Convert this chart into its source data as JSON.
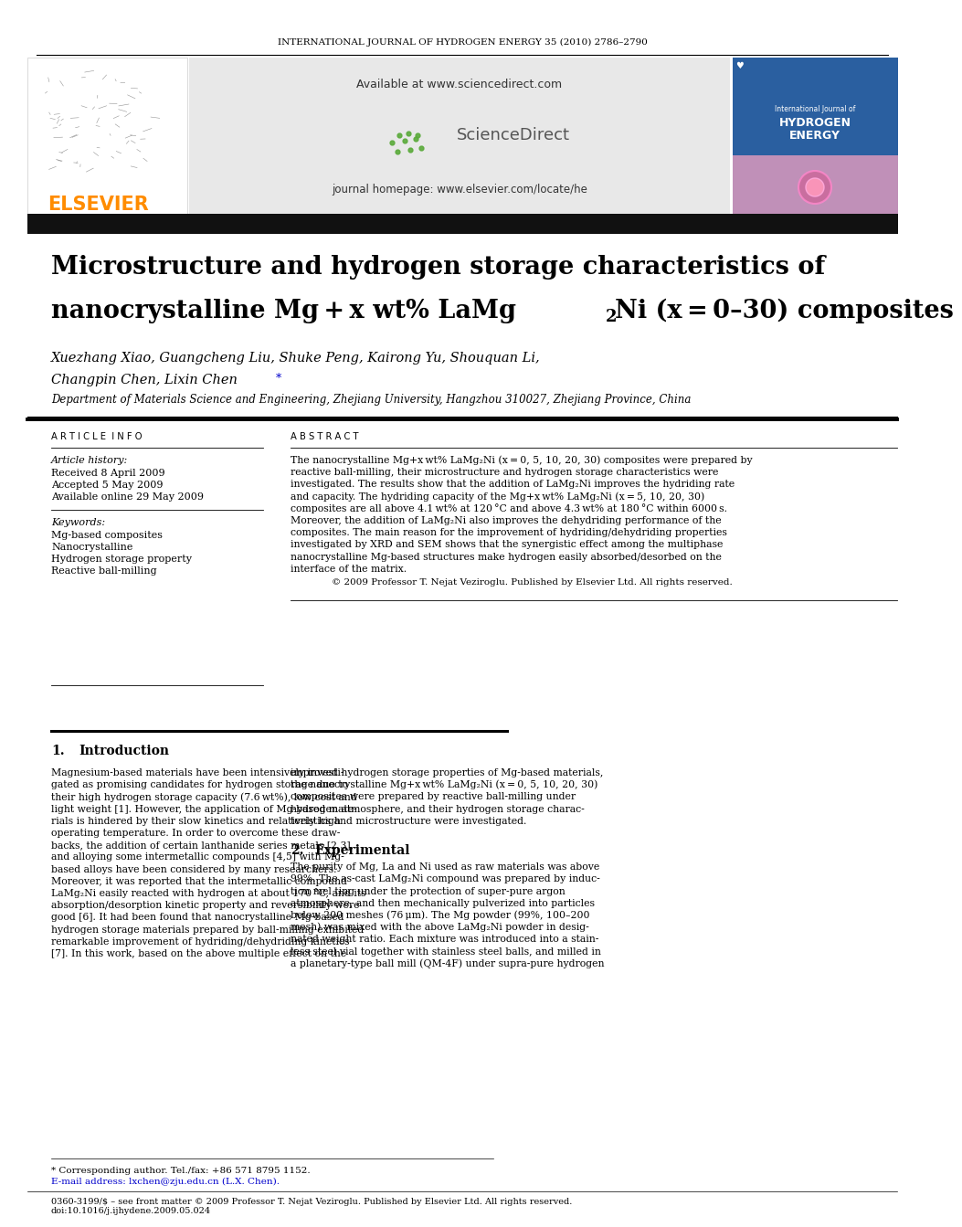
{
  "journal_header": "INTERNATIONAL JOURNAL OF HYDROGEN ENERGY 35 (2010) 2786–2790",
  "elsevier_text": "ELSEVIER",
  "elsevier_color": "#FF8C00",
  "available_text": "Available at www.sciencedirect.com",
  "journal_homepage": "journal homepage: www.elsevier.com/locate/he",
  "title_line1": "Microstructure and hydrogen storage characteristics of",
  "title_line2a": "nanocrystalline Mg + x wt% LaMg",
  "title_line2b": "Ni (x = 0–30) composites",
  "authors": "Xuezhang Xiao, Guangcheng Liu, Shuke Peng, Kairong Yu, Shouquan Li,",
  "authors2a": "Changpin Chen, Lixin Chen",
  "affiliation": "Department of Materials Science and Engineering, Zhejiang University, Hangzhou 310027, Zhejiang Province, China",
  "article_info_header": "A R T I C L E  I N F O",
  "abstract_header": "A B S T R A C T",
  "article_history_header": "Article history:",
  "received": "Received 8 April 2009",
  "accepted": "Accepted 5 May 2009",
  "available_online": "Available online 29 May 2009",
  "keywords_header": "Keywords:",
  "keyword1": "Mg-based composites",
  "keyword2": "Nanocrystalline",
  "keyword3": "Hydrogen storage property",
  "keyword4": "Reactive ball-milling",
  "abstract_lines": [
    "The nanocrystalline Mg+x wt% LaMg₂Ni (x = 0, 5, 10, 20, 30) composites were prepared by",
    "reactive ball-milling, their microstructure and hydrogen storage characteristics were",
    "investigated. The results show that the addition of LaMg₂Ni improves the hydriding rate",
    "and capacity. The hydriding capacity of the Mg+x wt% LaMg₂Ni (x = 5, 10, 20, 30)",
    "composites are all above 4.1 wt% at 120 °C and above 4.3 wt% at 180 °C within 6000 s.",
    "Moreover, the addition of LaMg₂Ni also improves the dehydriding performance of the",
    "composites. The main reason for the improvement of hydriding/dehydriding properties",
    "investigated by XRD and SEM shows that the synergistic effect among the multiphase",
    "nanocrystalline Mg-based structures make hydrogen easily absorbed/desorbed on the",
    "interface of the matrix."
  ],
  "copyright_text": "© 2009 Professor T. Nejat Veziroglu. Published by Elsevier Ltd. All rights reserved.",
  "section1_num": "1.",
  "section1_title": "Introduction",
  "intro_left_lines": [
    "Magnesium-based materials have been intensively investi-",
    "gated as promising candidates for hydrogen storage due to",
    "their high hydrogen storage capacity (7.6 wt%), low cost and",
    "light weight [1]. However, the application of Mg-based mate-",
    "rials is hindered by their slow kinetics and relatively high",
    "operating temperature. In order to overcome these draw-",
    "backs, the addition of certain lanthanide series metals [2,3]",
    "and alloying some intermetallic compounds [4,5] with Mg-",
    "based alloys have been considered by many researchers.",
    "Moreover, it was reported that the intermetallic compound",
    "LaMg₂Ni easily reacted with hydrogen at about 170 °C, and its",
    "absorption/desorption kinetic property and reversibility were",
    "good [6]. It had been found that nanocrystalline Mg-based",
    "hydrogen storage materials prepared by ball-milling exhibited",
    "remarkable improvement of hydriding/dehydriding kinetics",
    "[7]. In this work, based on the above multiple effect on the"
  ],
  "intro_right_lines": [
    "improved hydrogen storage properties of Mg-based materials,",
    "the nanocrystalline Mg+x wt% LaMg₂Ni (x = 0, 5, 10, 20, 30)",
    "composites were prepared by reactive ball-milling under",
    "hydrogen atmosphere, and their hydrogen storage charac-",
    "teristics and microstructure were investigated."
  ],
  "section2_num": "2.",
  "section2_title": "Experimental",
  "exp_lines": [
    "The purity of Mg, La and Ni used as raw materials was above",
    "99%. The as-cast LaMg₂Ni compound was prepared by induc-",
    "tion mel ting under the protection of super-pure argon",
    "atmosphere, and then mechanically pulverized into particles",
    "below 200 meshes (76 μm). The Mg powder (99%, 100–200",
    "mesh) was mixed with the above LaMg₂Ni powder in desig-",
    "nated weight ratio. Each mixture was introduced into a stain-",
    "less steel vial together with stainless steel balls, and milled in",
    "a planetary-type ball mill (QM-4F) under supra-pure hydrogen"
  ],
  "footnote_star": "* Corresponding author. Tel./fax: +86 571 8795 1152.",
  "footnote_email": "E-mail address: lxchen@zju.edu.cn (L.X. Chen).",
  "footnote_issn": "0360-3199/$ – see front matter © 2009 Professor T. Nejat Veziroglu. Published by Elsevier Ltd. All rights reserved.",
  "footnote_doi": "doi:10.1016/j.ijhydene.2009.05.024",
  "page_bg": "#ffffff"
}
